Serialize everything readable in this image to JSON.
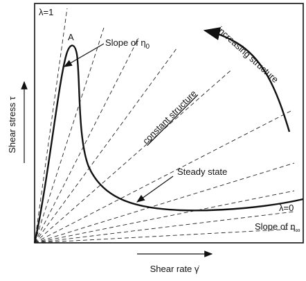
{
  "labels": {
    "lambda_one": "λ=1",
    "point_a": "A",
    "slope_zero": {
      "text": "Slope of η",
      "sub": "0"
    },
    "increasing": "increasing structure",
    "constant": "constant structure",
    "steady": "Steady state",
    "lambda_zero": "λ=0",
    "slope_inf": {
      "text": "Slope of η",
      "sub": "∞"
    }
  },
  "axes": {
    "y_label": "Shear stress τ",
    "x_label": "Shear rate γ̇"
  }
}
